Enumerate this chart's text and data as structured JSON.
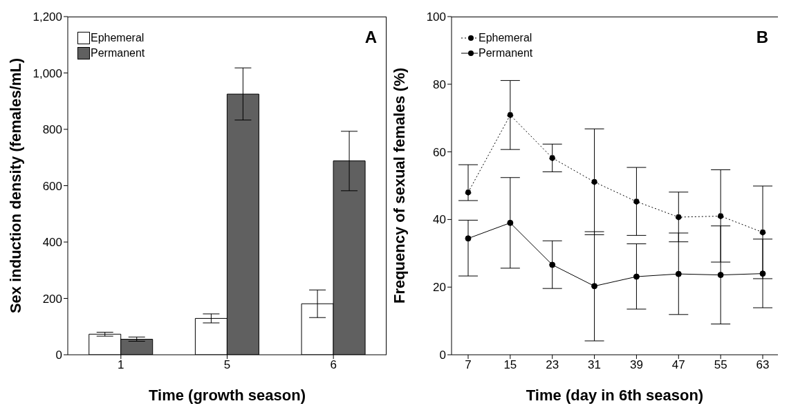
{
  "chart_data": [
    {
      "type": "bar",
      "title": "A",
      "xlabel": "Time (growth season)",
      "ylabel": "Sex induction density (females/mL)",
      "categories": [
        "1",
        "5",
        "6"
      ],
      "series": [
        {
          "name": "Ephemeral",
          "color": "#ffffff",
          "values": [
            73,
            129,
            181
          ],
          "errors": [
            [
              66,
              80
            ],
            [
              113,
              145
            ],
            [
              132,
              230
            ]
          ]
        },
        {
          "name": "Permanent",
          "color": "#606060",
          "values": [
            55,
            925,
            688
          ],
          "errors": [
            [
              48,
              63
            ],
            [
              833,
              1018
            ],
            [
              582,
              793
            ]
          ]
        }
      ],
      "ylim": [
        0,
        1200
      ],
      "yticks": [
        0,
        200,
        400,
        600,
        800,
        {
          "value": 1000,
          "label": "1,000"
        },
        {
          "value": 1200,
          "label": "1,200"
        }
      ],
      "grid": false,
      "legend": "top left"
    },
    {
      "type": "line",
      "title": "B",
      "xlabel": "Time (day in 6th season)",
      "ylabel": "Frequency of sexual females (%)",
      "categories": [
        "7",
        "15",
        "23",
        "31",
        "39",
        "47",
        "55",
        "63"
      ],
      "series": [
        {
          "name": "Ephemeral",
          "color": "#000000",
          "line_style": "dotted",
          "values": [
            48.0,
            70.9,
            58.2,
            51.1,
            45.3,
            40.7,
            41.0,
            36.2
          ],
          "errors": [
            [
              45.6,
              56.2
            ],
            [
              60.7,
              81.1
            ],
            [
              54.1,
              62.3
            ],
            [
              35.5,
              66.8
            ],
            [
              35.3,
              55.4
            ],
            [
              33.4,
              48.1
            ],
            [
              27.4,
              54.7
            ],
            [
              22.5,
              49.9
            ]
          ]
        },
        {
          "name": "Permanent",
          "color": "#000000",
          "line_style": "solid",
          "values": [
            34.4,
            39.0,
            26.6,
            20.3,
            23.1,
            23.9,
            23.6,
            24.0
          ],
          "errors": [
            [
              23.3,
              39.8
            ],
            [
              25.6,
              52.4
            ],
            [
              19.6,
              33.7
            ],
            [
              4.1,
              36.4
            ],
            [
              13.5,
              32.8
            ],
            [
              11.9,
              36.0
            ],
            [
              9.1,
              38.1
            ],
            [
              13.9,
              34.2
            ]
          ]
        }
      ],
      "ylim": [
        0,
        100
      ],
      "yticks": [
        0,
        20,
        40,
        60,
        80,
        100
      ],
      "grid": false,
      "legend": "top left",
      "marker": "circle"
    }
  ]
}
